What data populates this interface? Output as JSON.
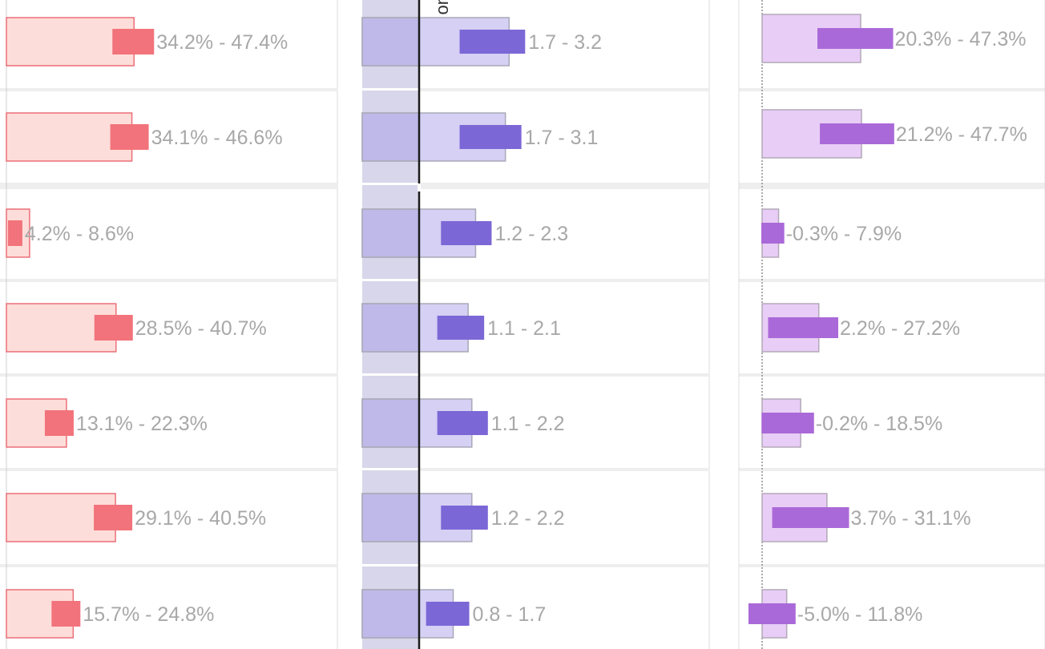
{
  "colors": {
    "risk_outer_fill": "#fdddd9",
    "risk_outer_stroke": "#ec6f78",
    "risk_inner": "#f2737b",
    "ratio_outer_fill": "#d5d0f4",
    "ratio_outer_stroke": "#a9a9b7",
    "ratio_band": "#d7d6ea",
    "ratio_band_dark": "#beb9e8",
    "ratio_inner": "#7c67d6",
    "diff_outer_fill": "#e8cdf6",
    "diff_outer_stroke": "#b3a8b8",
    "diff_inner": "#aa69d8",
    "label_text": "#a8a8a8",
    "separator": "#eeeeee",
    "reference_line": "#1a1a1a"
  },
  "chart_data": [
    {
      "type": "bar",
      "name": "left-panel",
      "x_unit": "percent",
      "xlim": [
        0,
        60
      ],
      "rows": [
        {
          "outer": 47.4,
          "lo": 34.2,
          "hi": 47.4,
          "label": "34.2% - 47.4%"
        },
        {
          "outer": 46.6,
          "lo": 34.1,
          "hi": 46.6,
          "label": "34.1% - 46.6%"
        },
        {
          "outer": 8.6,
          "lo": 4.2,
          "hi": 8.6,
          "label": "4.2% - 8.6%"
        },
        {
          "outer": 40.7,
          "lo": 28.5,
          "hi": 40.7,
          "label": "28.5% - 40.7%"
        },
        {
          "outer": 22.3,
          "lo": 13.1,
          "hi": 22.3,
          "label": "13.1% - 22.3%"
        },
        {
          "outer": 40.5,
          "lo": 29.1,
          "hi": 40.5,
          "label": "29.1% - 40.5%"
        },
        {
          "outer": 24.8,
          "lo": 15.7,
          "hi": 24.8,
          "label": "15.7% - 24.8%"
        }
      ]
    },
    {
      "type": "bar",
      "name": "middle-panel",
      "x_unit": "ratio",
      "reference": 1.0,
      "axis_title_fragment": "uo",
      "rows": [
        {
          "outer": 3.2,
          "lo": 1.7,
          "hi": 3.2,
          "label": "1.7 - 3.2"
        },
        {
          "outer": 3.1,
          "lo": 1.7,
          "hi": 3.1,
          "label": "1.7 - 3.1"
        },
        {
          "outer": 2.3,
          "lo": 1.2,
          "hi": 2.3,
          "label": "1.2 - 2.3"
        },
        {
          "outer": 2.1,
          "lo": 1.1,
          "hi": 2.1,
          "label": "1.1 - 2.1"
        },
        {
          "outer": 2.2,
          "lo": 1.1,
          "hi": 2.2,
          "label": "1.1 - 2.2"
        },
        {
          "outer": 2.2,
          "lo": 1.2,
          "hi": 2.2,
          "label": "1.2 - 2.2"
        },
        {
          "outer": 1.7,
          "lo": 0.8,
          "hi": 1.7,
          "label": "0.8 - 1.7"
        }
      ]
    },
    {
      "type": "bar",
      "name": "right-panel",
      "x_unit": "percent",
      "reference": 0,
      "rows": [
        {
          "outer": 47.3,
          "lo": 20.3,
          "hi": 47.3,
          "label": "20.3% - 47.3%"
        },
        {
          "outer": 47.7,
          "lo": 21.2,
          "hi": 47.7,
          "label": "21.2% - 47.7%"
        },
        {
          "outer": 7.9,
          "lo": -0.3,
          "hi": 7.9,
          "label": "-0.3% - 7.9%"
        },
        {
          "outer": 27.2,
          "lo": 2.2,
          "hi": 27.2,
          "label": "2.2% - 27.2%"
        },
        {
          "outer": 18.5,
          "lo": -0.2,
          "hi": 18.5,
          "label": "-0.2% - 18.5%"
        },
        {
          "outer": 31.1,
          "lo": 3.7,
          "hi": 31.1,
          "label": "3.7% - 31.1%"
        },
        {
          "outer": 11.8,
          "lo": -5.0,
          "hi": 11.8,
          "label": "-5.0% - 11.8%"
        }
      ]
    }
  ]
}
